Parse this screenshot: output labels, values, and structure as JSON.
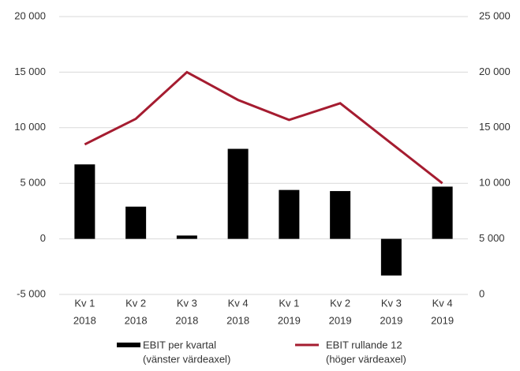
{
  "chart_data": {
    "type": "bar+line",
    "categories": [
      [
        "Kv 1",
        "2018"
      ],
      [
        "Kv 2",
        "2018"
      ],
      [
        "Kv 3",
        "2018"
      ],
      [
        "Kv 4",
        "2018"
      ],
      [
        "Kv 1",
        "2019"
      ],
      [
        "Kv 2",
        "2019"
      ],
      [
        "Kv 3",
        "2019"
      ],
      [
        "Kv 4",
        "2019"
      ]
    ],
    "series": [
      {
        "name": [
          "EBIT per kvartal",
          "(vänster värdeaxel)"
        ],
        "type": "bar",
        "color": "#000000",
        "values": [
          6700,
          2900,
          300,
          8100,
          4400,
          4300,
          -3300,
          4700
        ]
      },
      {
        "name": [
          "EBIT rullande 12",
          "(höger värdeaxel)"
        ],
        "type": "line",
        "axis": "y2",
        "color": "#a51c30",
        "values": [
          13500,
          15800,
          20000,
          17500,
          15700,
          17200,
          13600,
          10000
        ]
      }
    ],
    "ylim": [
      -5000,
      20000
    ],
    "yticks": [
      {
        "value": -5000,
        "label": "-5 000"
      },
      0,
      {
        "value": 5000,
        "label": "5 000"
      },
      {
        "value": 10000,
        "label": "10 000"
      },
      {
        "value": 15000,
        "label": "15 000"
      },
      {
        "value": 20000,
        "label": "20 000"
      }
    ],
    "y2lim": [
      0,
      25000
    ],
    "y2ticks": [
      0,
      {
        "value": 5000,
        "label": "5 000"
      },
      {
        "value": 10000,
        "label": "10 000"
      },
      {
        "value": 15000,
        "label": "15 000"
      },
      {
        "value": 20000,
        "label": "20 000"
      },
      {
        "value": 25000,
        "label": "25 000"
      }
    ],
    "grid": true,
    "legend": "bottom"
  }
}
